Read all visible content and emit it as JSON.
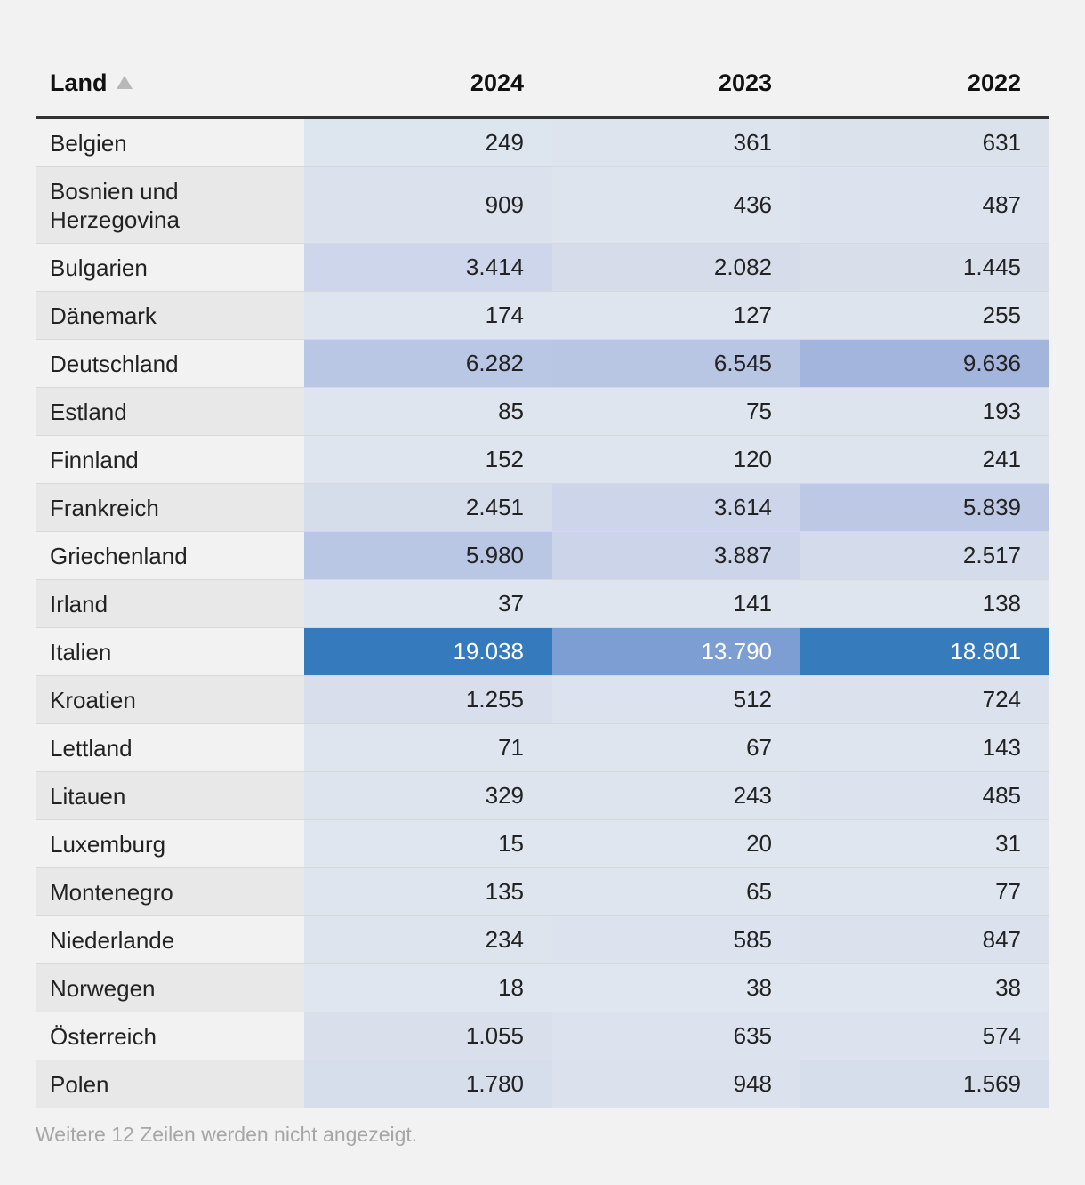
{
  "chart_data": {
    "type": "table",
    "columns": [
      "Land",
      "2024",
      "2023",
      "2022"
    ],
    "sort": {
      "column": "Land",
      "direction": "ascending"
    },
    "rows": [
      {
        "land": "Belgien",
        "values": [
          "249",
          "361",
          "631"
        ],
        "colors": [
          "#dde5ef",
          "#dde4ee",
          "#dbe2ec"
        ]
      },
      {
        "land": "Bosnien und Herzegovina",
        "values": [
          "909",
          "436",
          "487"
        ],
        "colors": [
          "#dbe2ed",
          "#dde4ee",
          "#dce3ee"
        ]
      },
      {
        "land": "Bulgarien",
        "values": [
          "3.414",
          "2.082",
          "1.445"
        ],
        "colors": [
          "#cdd6ea",
          "#d6dcea",
          "#d8dfeb"
        ]
      },
      {
        "land": "Dänemark",
        "values": [
          "174",
          "127",
          "255"
        ],
        "colors": [
          "#dfe5ef",
          "#dfe5ef",
          "#dde4ee"
        ]
      },
      {
        "land": "Deutschland",
        "values": [
          "6.282",
          "6.545",
          "9.636"
        ],
        "colors": [
          "#b9c7e4",
          "#b8c6e3",
          "#a3b4dd"
        ]
      },
      {
        "land": "Estland",
        "values": [
          "85",
          "75",
          "193"
        ],
        "colors": [
          "#dfe5ef",
          "#dfe5ef",
          "#dee4ee"
        ]
      },
      {
        "land": "Finnland",
        "values": [
          "152",
          "120",
          "241"
        ],
        "colors": [
          "#dfe5ef",
          "#dfe5ef",
          "#dde4ee"
        ]
      },
      {
        "land": "Frankreich",
        "values": [
          "2.451",
          "3.614",
          "5.839"
        ],
        "colors": [
          "#d5dcea",
          "#ccd5e9",
          "#bdc9e4"
        ]
      },
      {
        "land": "Griechenland",
        "values": [
          "5.980",
          "3.887",
          "2.517"
        ],
        "colors": [
          "#bac7e4",
          "#cbd4e9",
          "#d4dbea"
        ]
      },
      {
        "land": "Irland",
        "values": [
          "37",
          "141",
          "138"
        ],
        "colors": [
          "#dfe5ef",
          "#dfe5ef",
          "#dfe5ef"
        ]
      },
      {
        "land": "Italien",
        "values": [
          "19.038",
          "13.790",
          "18.801"
        ],
        "colors": [
          "#347abc",
          "#7c9ed2",
          "#367bbc"
        ],
        "light_text": [
          true,
          true,
          true
        ]
      },
      {
        "land": "Kroatien",
        "values": [
          "1.255",
          "512",
          "724"
        ],
        "colors": [
          "#d8deeb",
          "#dde3ee",
          "#dce2ed"
        ]
      },
      {
        "land": "Lettland",
        "values": [
          "71",
          "67",
          "143"
        ],
        "colors": [
          "#dfe5ef",
          "#dfe5ef",
          "#dfe5ef"
        ]
      },
      {
        "land": "Litauen",
        "values": [
          "329",
          "243",
          "485"
        ],
        "colors": [
          "#dde4ee",
          "#dee4ee",
          "#dce3ee"
        ]
      },
      {
        "land": "Luxemburg",
        "values": [
          "15",
          "20",
          "31"
        ],
        "colors": [
          "#e0e6ef",
          "#e0e6ef",
          "#e0e6ef"
        ]
      },
      {
        "land": "Montenegro",
        "values": [
          "135",
          "65",
          "77"
        ],
        "colors": [
          "#dfe5ef",
          "#dfe5ef",
          "#dfe5ef"
        ]
      },
      {
        "land": "Niederlande",
        "values": [
          "234",
          "585",
          "847"
        ],
        "colors": [
          "#dee4ee",
          "#dce3ee",
          "#dbe2ed"
        ]
      },
      {
        "land": "Norwegen",
        "values": [
          "18",
          "38",
          "38"
        ],
        "colors": [
          "#e0e6ef",
          "#e0e6ef",
          "#e0e6ef"
        ]
      },
      {
        "land": "Österreich",
        "values": [
          "1.055",
          "635",
          "574"
        ],
        "colors": [
          "#d9e0ec",
          "#dce3ee",
          "#dce3ee"
        ]
      },
      {
        "land": "Polen",
        "values": [
          "1.780",
          "948",
          "1.569"
        ],
        "colors": [
          "#d6ddeb",
          "#dbe2ed",
          "#d7deeb"
        ]
      }
    ],
    "note": "Weitere 12 Zeilen werden nicht angezeigt."
  }
}
